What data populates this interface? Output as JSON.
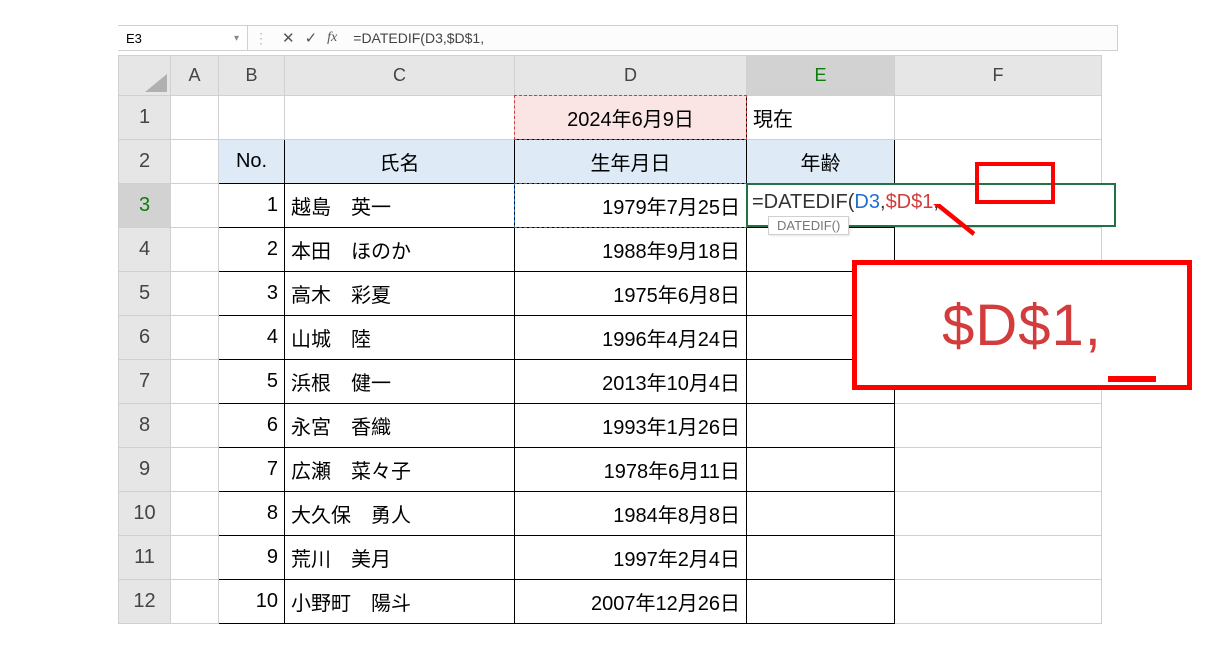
{
  "namebox": {
    "value": "E3"
  },
  "formula_bar": {
    "value": "=DATEDIF(D3,$D$1,"
  },
  "columns": {
    "A": "A",
    "B": "B",
    "C": "C",
    "D": "D",
    "E": "E",
    "F": "F"
  },
  "row_numbers": [
    "1",
    "2",
    "3",
    "4",
    "5",
    "6",
    "7",
    "8",
    "9",
    "10",
    "11",
    "12"
  ],
  "r1": {
    "D": "2024年6月9日",
    "E": "現在"
  },
  "r2": {
    "B": "No.",
    "C": "氏名",
    "D": "生年月日",
    "E": "年齢"
  },
  "data": [
    {
      "no": "1",
      "name": "越島　英一",
      "dob": "1979年7月25日"
    },
    {
      "no": "2",
      "name": "本田　ほのか",
      "dob": "1988年9月18日"
    },
    {
      "no": "3",
      "name": "高木　彩夏",
      "dob": "1975年6月8日"
    },
    {
      "no": "4",
      "name": "山城　陸",
      "dob": "1996年4月24日"
    },
    {
      "no": "5",
      "name": "浜根　健一",
      "dob": "2013年10月4日"
    },
    {
      "no": "6",
      "name": "永宮　香織",
      "dob": "1993年1月26日"
    },
    {
      "no": "7",
      "name": "広瀬　菜々子",
      "dob": "1978年6月11日"
    },
    {
      "no": "8",
      "name": "大久保　勇人",
      "dob": "1984年8月8日"
    },
    {
      "no": "9",
      "name": "荒川　美月",
      "dob": "1997年2月4日"
    },
    {
      "no": "10",
      "name": "小野町　陽斗",
      "dob": "2007年12月26日"
    }
  ],
  "editing": {
    "fn": "=DATEDIF(",
    "ref1": "D3",
    "sep1": ",",
    "ref2": "$D$1",
    "tail": ","
  },
  "tooltip": "DATEDIF()",
  "callout": {
    "text": "$D$1",
    "comma": ","
  },
  "colors": {
    "header_fill": "#deebf7",
    "date_fill": "#fbe5e4",
    "active_border": "#217346",
    "ref1": "#1f6fd1",
    "ref2": "#d23c3c",
    "annotation": "#ff0000"
  }
}
